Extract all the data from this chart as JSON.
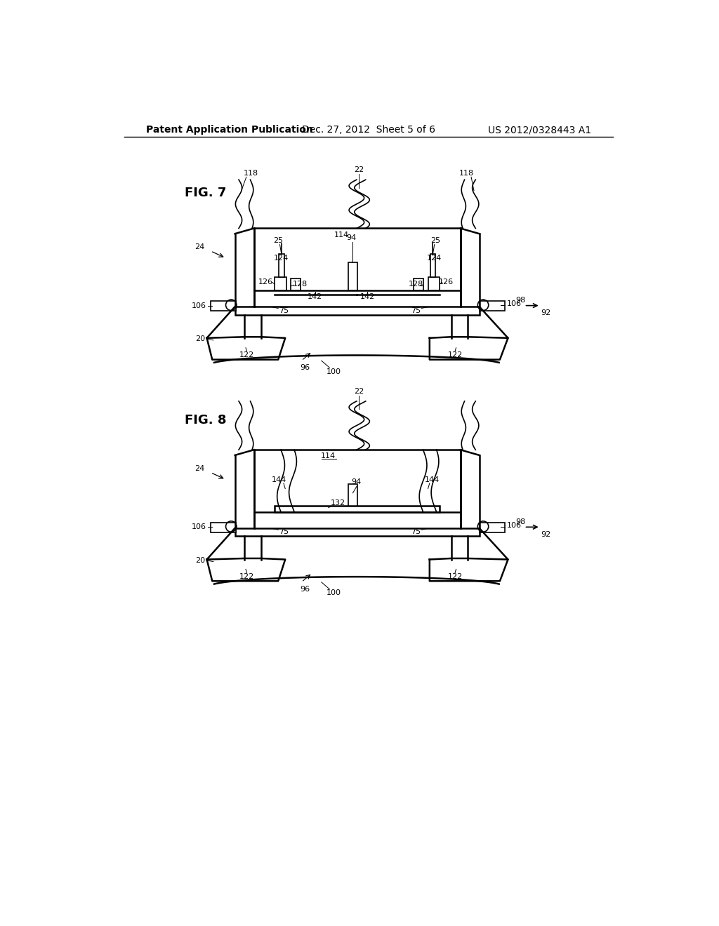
{
  "background_color": "#ffffff",
  "header_left": "Patent Application Publication",
  "header_center": "Dec. 27, 2012  Sheet 5 of 6",
  "header_right": "US 2012/0328443 A1",
  "fig7_label": "FIG. 7",
  "fig8_label": "FIG. 8",
  "line_color": "#000000",
  "text_color": "#000000",
  "font_size_header": 10,
  "font_size_fig": 13,
  "font_size_label": 9
}
